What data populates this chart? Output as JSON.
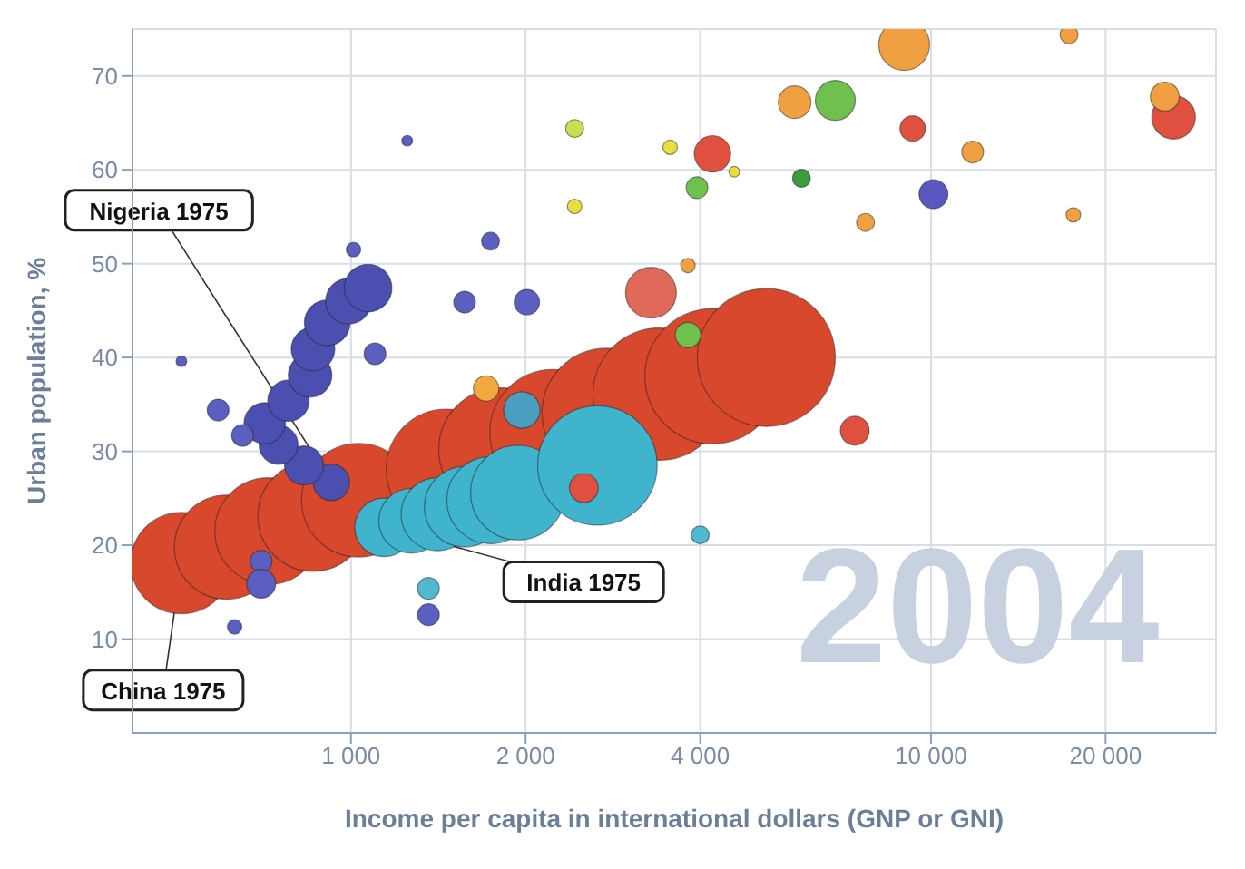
{
  "chart_data": {
    "type": "bubble",
    "xlabel": "Income per capita in international dollars (GNP or GNI)",
    "ylabel": "Urban population, %",
    "log": "x",
    "grid": true,
    "xlim": [
      420,
      31000
    ],
    "xticks": [
      {
        "value": 1000,
        "label": "1 000"
      },
      {
        "value": 2000,
        "label": "2 000"
      },
      {
        "value": 4000,
        "label": "4 000"
      },
      {
        "value": 10000,
        "label": "10 000"
      },
      {
        "value": 20000,
        "label": "20 000"
      }
    ],
    "ylim": [
      0,
      75
    ],
    "yticks": [
      10,
      20,
      30,
      40,
      50,
      60,
      70
    ],
    "annotations": [
      "2004",
      {
        "text": "Nigeria 1975",
        "x": 925,
        "y": 26.7
      },
      {
        "text": "India 1975",
        "x": 1140,
        "y": 21.9
      },
      {
        "text": "China 1975",
        "x": 510,
        "y": 18.1
      }
    ],
    "series": [
      {
        "color": "#d8482c",
        "x": [
          510,
          610,
          720,
          860,
          1030,
          1460,
          1810,
          2230,
          2760,
          3400,
          4200,
          5200
        ],
        "values": [
          18.1,
          19.8,
          21.5,
          23.1,
          24.8,
          28.1,
          30.2,
          32.0,
          34.1,
          36.1,
          38.0,
          40.0
        ],
        "sizes": [
          0.54,
          0.57,
          0.6,
          0.64,
          0.68,
          0.76,
          0.8,
          0.84,
          0.88,
          0.92,
          0.96,
          1
        ]
      },
      {
        "color": "#3fb4cc",
        "x": [
          1140,
          1270,
          1410,
          1570,
          1740,
          1940,
          2660
        ],
        "values": [
          21.9,
          22.6,
          23.3,
          24.1,
          24.8,
          25.6,
          28.5
        ],
        "sizes": [
          0.18,
          0.22,
          0.28,
          0.34,
          0.4,
          0.47,
          0.75
        ]
      },
      {
        "color": "#4b4fb0",
        "x": [
          925,
          830,
          750,
          710,
          780,
          850,
          860,
          910,
          990,
          1070
        ],
        "values": [
          26.7,
          28.5,
          30.7,
          33.0,
          35.4,
          38.1,
          40.9,
          43.7,
          46.0,
          47.4
        ],
        "sizes": [
          0.07,
          0.08,
          0.08,
          0.09,
          0.09,
          0.1,
          0.1,
          0.11,
          0.11,
          0.12
        ]
      },
      {
        "x": [
          590,
          510,
          650,
          700,
          700,
          630,
          1360,
          1360,
          1100,
          1010,
          1250,
          1570,
          1740,
          2010,
          2430,
          2430,
          1710,
          1970,
          2520,
          4200,
          3290,
          3810,
          3950,
          10100,
          9300,
          6840,
          5820,
          8990,
          26200,
          25300,
          11800,
          5980,
          7710,
          3810,
          17600,
          17300,
          7390,
          4000,
          3550,
          4580
        ],
        "values": [
          34.4,
          39.6,
          31.7,
          18.3,
          15.9,
          11.3,
          12.6,
          15.4,
          40.4,
          51.5,
          63.1,
          45.9,
          52.4,
          45.9,
          56.1,
          64.4,
          36.7,
          34.4,
          26.1,
          61.7,
          46.9,
          42.4,
          58.1,
          57.4,
          64.4,
          67.4,
          67.2,
          73.3,
          65.6,
          67.8,
          61.9,
          59.1,
          54.4,
          49.8,
          55.2,
          74.4,
          32.2,
          21.1,
          62.4,
          59.8
        ],
        "sizes": [
          0.025,
          0.006,
          0.025,
          0.025,
          0.044,
          0.011,
          0.025,
          0.025,
          0.025,
          0.011,
          0.006,
          0.025,
          0.017,
          0.034,
          0.011,
          0.017,
          0.034,
          0.07,
          0.044,
          0.07,
          0.136,
          0.034,
          0.025,
          0.044,
          0.034,
          0.084,
          0.056,
          0.136,
          0.1,
          0.044,
          0.025,
          0.017,
          0.017,
          0.011,
          0.011,
          0.017,
          0.044,
          0.017,
          0.011,
          0.006
        ],
        "colors": [
          "#5b5fc0",
          "#5b5fc0",
          "#5b5fc0",
          "#5b5fc0",
          "#5b5fc0",
          "#5b5fc0",
          "#5b5fc0",
          "#50b8d0",
          "#5b5fc0",
          "#5b5fc0",
          "#5b5fc0",
          "#5b5fc0",
          "#5b5fc0",
          "#5b5fc0",
          "#e8e040",
          "#c8e050",
          "#f0a840",
          "#4a9ec0",
          "#e05040",
          "#e05040",
          "#e06a5a",
          "#70c050",
          "#70c050",
          "#5a58c0",
          "#e05040",
          "#70c050",
          "#f0a040",
          "#f0a040",
          "#e05040",
          "#f0a040",
          "#f0a040",
          "#3c9c40",
          "#f0a040",
          "#f0a040",
          "#f0a040",
          "#f0a040",
          "#e05040",
          "#50b8d0",
          "#e8e040",
          "#e8e040"
        ]
      }
    ]
  }
}
